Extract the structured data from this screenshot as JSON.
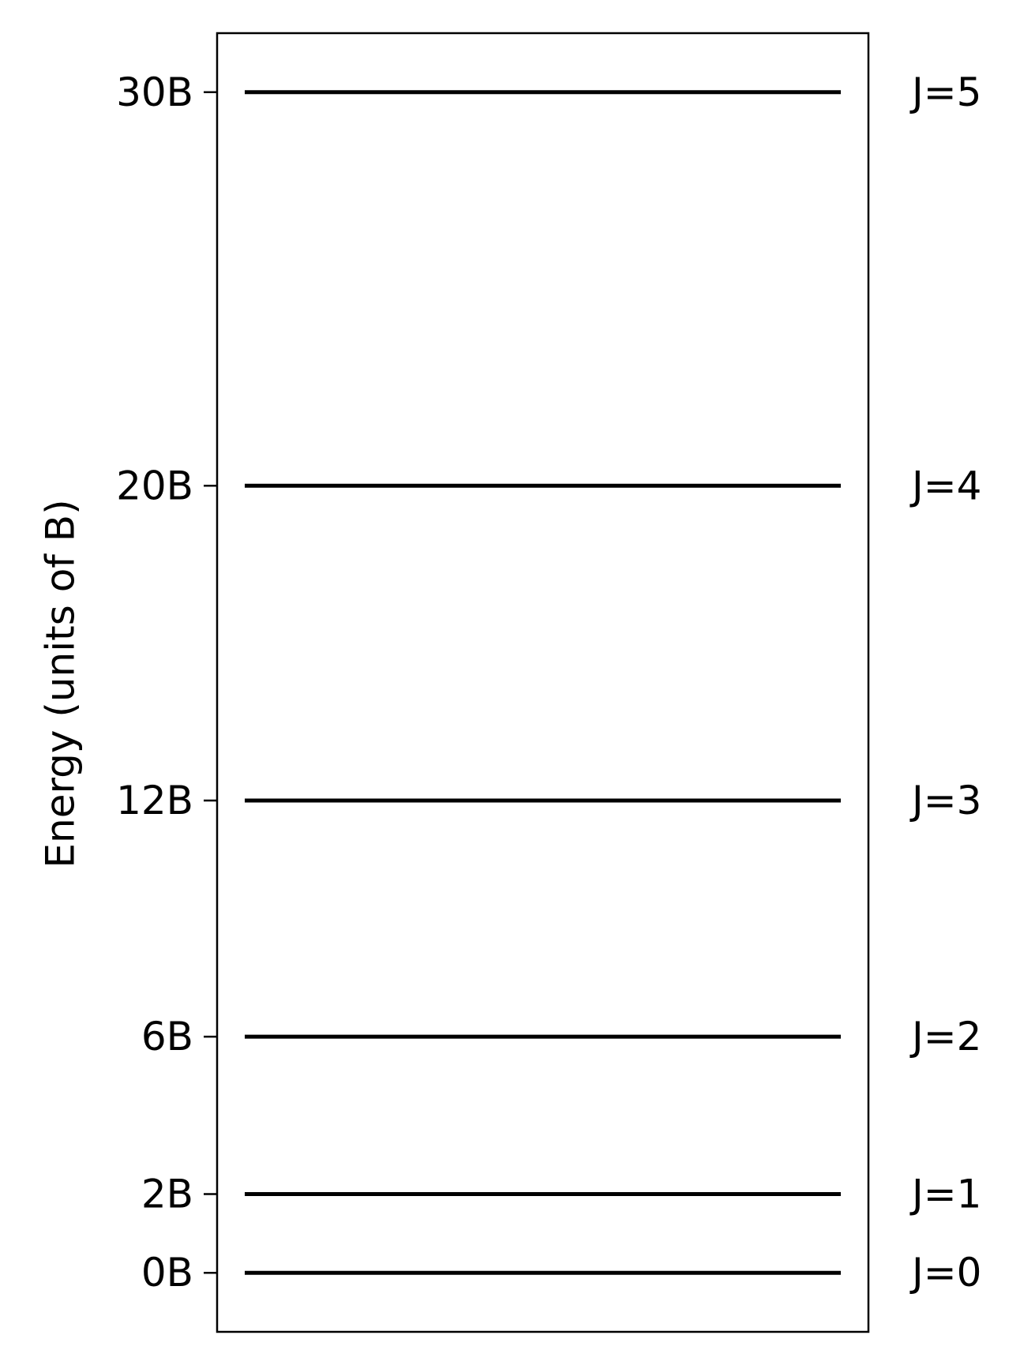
{
  "chart_data": {
    "type": "energy-level-diagram",
    "title": "",
    "ylabel": "Energy (units of B)",
    "xlabel": "",
    "ylim": [
      -1.5,
      31.5
    ],
    "levels": [
      {
        "j_label": "J=0",
        "energy": 0,
        "tick_label": "0B"
      },
      {
        "j_label": "J=1",
        "energy": 2,
        "tick_label": "2B"
      },
      {
        "j_label": "J=2",
        "energy": 6,
        "tick_label": "6B"
      },
      {
        "j_label": "J=3",
        "energy": 12,
        "tick_label": "12B"
      },
      {
        "j_label": "J=4",
        "energy": 20,
        "tick_label": "20B"
      },
      {
        "j_label": "J=5",
        "energy": 30,
        "tick_label": "30B"
      }
    ],
    "line_color": "#000000",
    "grid": false,
    "legend": "none"
  }
}
